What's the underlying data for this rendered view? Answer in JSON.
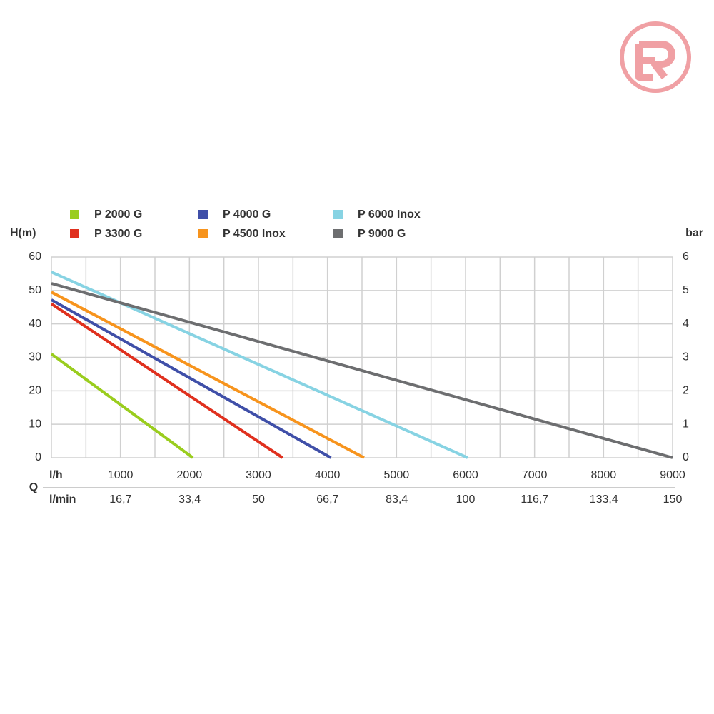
{
  "chart_data": {
    "type": "line",
    "ylabel": "H(m)",
    "y2label": "bar",
    "x_title": "Q",
    "x_label": "l/h",
    "x2_label": "l/min",
    "xlim": [
      0,
      9000
    ],
    "xticks": [
      1000,
      2000,
      3000,
      4000,
      5000,
      6000,
      7000,
      8000,
      9000
    ],
    "x_minor_ticks": [
      500,
      1500,
      2500,
      3500,
      4500,
      5500,
      6500,
      7500,
      8500
    ],
    "x2lim": [
      0,
      150
    ],
    "x2ticks": [
      {
        "value": 16.7,
        "label": "16,7"
      },
      {
        "value": 33.4,
        "label": "33,4"
      },
      50,
      {
        "value": 66.7,
        "label": "66,7"
      },
      {
        "value": 83.4,
        "label": "83,4"
      },
      100,
      {
        "value": 116.7,
        "label": "116,7"
      },
      {
        "value": 133.4,
        "label": "133,4"
      },
      150
    ],
    "ylim": [
      0,
      60
    ],
    "yticks": [
      0,
      10,
      20,
      30,
      40,
      50,
      60
    ],
    "y2lim": [
      0,
      6
    ],
    "y2ticks": [
      0,
      1,
      2,
      3,
      4,
      5,
      6
    ],
    "grid": true,
    "series": [
      {
        "name": "P 2000 G",
        "color": "#9acd1e",
        "x": [
          0,
          2050
        ],
        "values": [
          31,
          0
        ]
      },
      {
        "name": "P 3300 G",
        "color": "#e0301e",
        "x": [
          0,
          3350
        ],
        "values": [
          46,
          0
        ]
      },
      {
        "name": "P 4000 G",
        "color": "#3f4fa8",
        "x": [
          0,
          4050
        ],
        "values": [
          47.2,
          0
        ]
      },
      {
        "name": "P 4500 Inox",
        "color": "#f7941d",
        "x": [
          0,
          4530
        ],
        "values": [
          49.5,
          0
        ]
      },
      {
        "name": "P 6000 Inox",
        "color": "#87d3e3",
        "x": [
          0,
          6030
        ],
        "values": [
          55.5,
          0
        ]
      },
      {
        "name": "P 9000 G",
        "color": "#6d6e70",
        "x": [
          0,
          9000
        ],
        "values": [
          52.1,
          0
        ]
      }
    ]
  }
}
